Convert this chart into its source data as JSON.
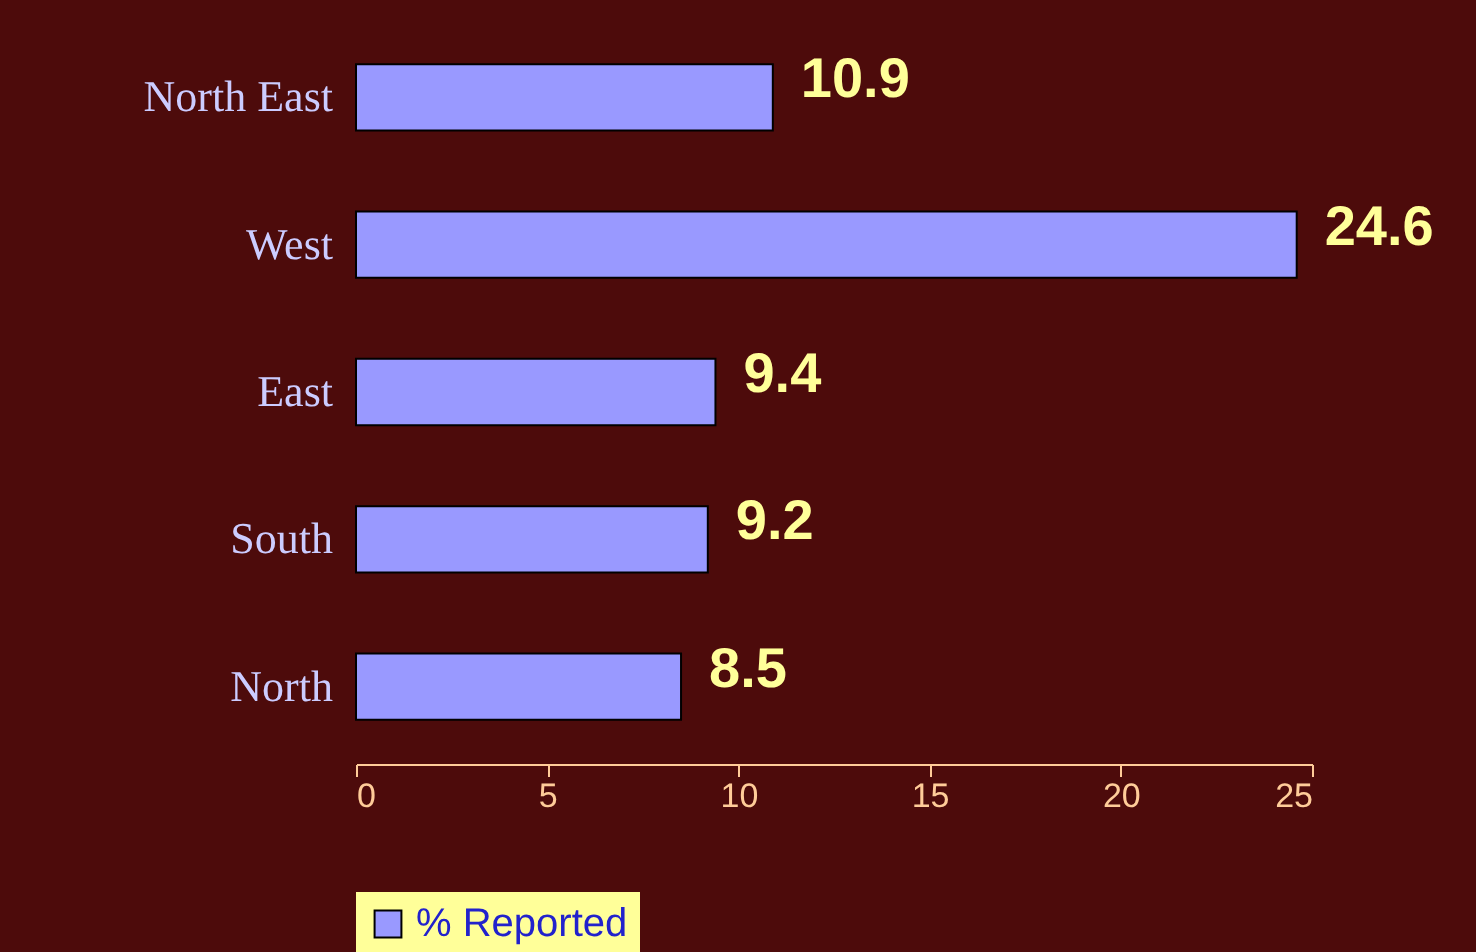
{
  "chart_data": {
    "type": "bar",
    "orientation": "horizontal",
    "categories": [
      "North East",
      "West",
      "East",
      "South",
      "North"
    ],
    "series": [
      {
        "name": "% Reported",
        "color": "#9999ff",
        "values": [
          10.9,
          24.6,
          9.4,
          9.2,
          8.5
        ]
      }
    ],
    "xlim": [
      0,
      25
    ],
    "xticks": [
      0,
      5,
      10,
      15,
      20,
      25
    ],
    "data_labels": true,
    "legend": "bottom",
    "grid": false
  }
}
